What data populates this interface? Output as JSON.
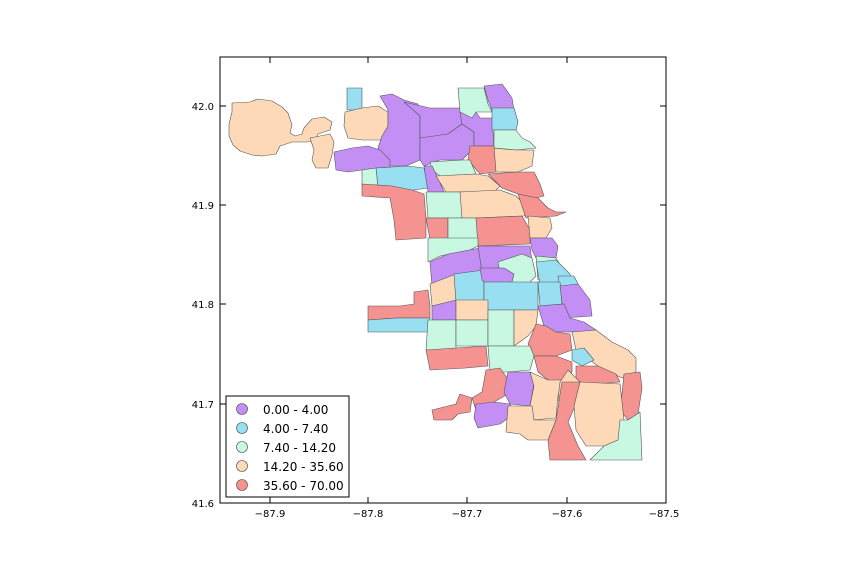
{
  "map": {
    "x_ticks": [
      "−87.9",
      "−87.8",
      "−87.7",
      "−87.6",
      "−87.5"
    ],
    "y_ticks": [
      "42.0",
      "41.9",
      "41.8",
      "41.7",
      "41.6"
    ],
    "legend": [
      {
        "label": "0.00 - 4.00",
        "color": "#c38ff5"
      },
      {
        "label": "4.00 - 7.40",
        "color": "#99dff2"
      },
      {
        "label": "7.40 - 14.20",
        "color": "#c8f8e1"
      },
      {
        "label": "14.20 - 35.60",
        "color": "#fdd9b7"
      },
      {
        "label": "35.60 - 70.00",
        "color": "#f59391"
      }
    ]
  },
  "chart_data": {
    "type": "choropleth",
    "xlim": [
      -87.95,
      -87.5
    ],
    "ylim": [
      41.6,
      42.05
    ],
    "bins": [
      {
        "min": 0.0,
        "max": 4.0,
        "color": "#c38ff5"
      },
      {
        "min": 4.0,
        "max": 7.4,
        "color": "#99dff2"
      },
      {
        "min": 7.4,
        "max": 14.2,
        "color": "#c8f8e1"
      },
      {
        "min": 14.2,
        "max": 35.6,
        "color": "#fdd9b7"
      },
      {
        "min": 35.6,
        "max": 70.0,
        "color": "#f59391"
      }
    ],
    "legend_position": "lower-left"
  }
}
